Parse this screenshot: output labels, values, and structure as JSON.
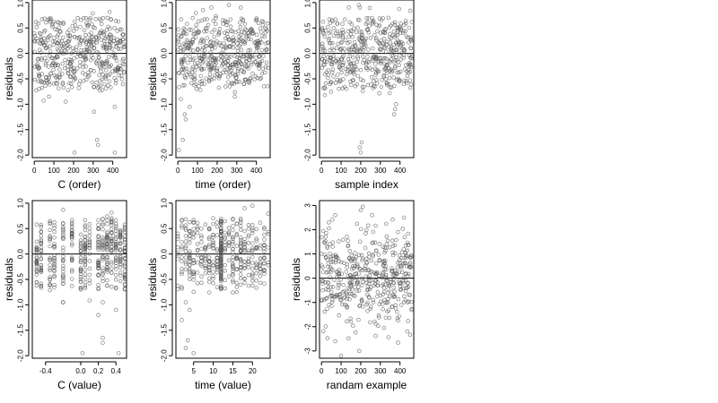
{
  "figure": {
    "background": "#ffffff",
    "point_color": "#555555"
  },
  "chart_data": [
    {
      "type": "scatter",
      "title": "",
      "xlabel": "C (order)",
      "ylabel": "residuals",
      "xlim": [
        -10,
        470
      ],
      "ylim": [
        -2.05,
        1.05
      ],
      "xticks": [
        0,
        100,
        200,
        300,
        400
      ],
      "xtick_labels": [
        "0",
        "100",
        "200",
        "300",
        "400"
      ],
      "yticks": [
        1,
        0.5,
        0,
        -0.5,
        -1,
        -1.5,
        -2
      ],
      "ytick_labels": [
        "1.0",
        "0.5",
        "0.0",
        "-0.5",
        "-1.0",
        "-1.5",
        "-2.0"
      ],
      "hline": 0,
      "n_points": 460,
      "x_range": [
        0,
        460
      ],
      "y_distribution": "mostly -0.8 to 0.8, bimodal around ±0.3",
      "outliers": [
        [
          205,
          -1.95
        ],
        [
          320,
          -1.7
        ],
        [
          325,
          -1.8
        ],
        [
          410,
          -1.95
        ],
        [
          305,
          -1.15
        ],
        [
          410,
          -1.05
        ],
        [
          160,
          -0.95
        ],
        [
          75,
          -0.85
        ]
      ],
      "grid": false,
      "legend": "none"
    },
    {
      "type": "scatter",
      "title": "",
      "xlabel": "time (order)",
      "ylabel": "residuals",
      "xlim": [
        -10,
        470
      ],
      "ylim": [
        -2.05,
        1.05
      ],
      "xticks": [
        0,
        100,
        200,
        300,
        400
      ],
      "xtick_labels": [
        "0",
        "100",
        "200",
        "300",
        "400"
      ],
      "yticks": [
        1,
        0.5,
        0,
        -0.5,
        -1,
        -1.5,
        -2
      ],
      "ytick_labels": [
        "1.0",
        "0.5",
        "0.0",
        "-0.5",
        "-1.0",
        "-1.5",
        "-2.0"
      ],
      "hline": 0,
      "n_points": 460,
      "x_range": [
        0,
        460
      ],
      "y_distribution": "mostly -0.6 to 0.8, large negatives near x=0-50",
      "outliers": [
        [
          5,
          -1.9
        ],
        [
          25,
          -1.7
        ],
        [
          35,
          -1.2
        ],
        [
          40,
          -1.3
        ],
        [
          60,
          -1.05
        ],
        [
          15,
          -0.9
        ],
        [
          260,
          0.95
        ],
        [
          320,
          0.9
        ],
        [
          95,
          -0.7
        ]
      ],
      "grid": false,
      "legend": "none"
    },
    {
      "type": "scatter",
      "title": "",
      "xlabel": "sample index",
      "ylabel": "residuals",
      "xlim": [
        -10,
        470
      ],
      "ylim": [
        -2.05,
        1.05
      ],
      "xticks": [
        0,
        100,
        200,
        300,
        400
      ],
      "xtick_labels": [
        "0",
        "100",
        "200",
        "300",
        "400"
      ],
      "yticks": [
        1,
        0.5,
        0,
        -0.5,
        -1,
        -1.5,
        -2
      ],
      "ytick_labels": [
        "1.0",
        "0.5",
        "0.0",
        "-0.5",
        "-1.0",
        "-1.5",
        "-2.0"
      ],
      "hline": 0,
      "n_points": 460,
      "x_range": [
        0,
        460
      ],
      "y_distribution": "mostly -0.7 to 0.8",
      "outliers": [
        [
          195,
          -1.85
        ],
        [
          200,
          -1.95
        ],
        [
          205,
          -1.75
        ],
        [
          370,
          -1.2
        ],
        [
          375,
          -1.1
        ],
        [
          380,
          -1.0
        ],
        [
          190,
          0.95
        ]
      ],
      "grid": false,
      "legend": "none"
    },
    {
      "type": "scatter",
      "title": "",
      "xlabel": "C (value)",
      "ylabel": "residuals",
      "xlim": [
        -0.55,
        0.52
      ],
      "ylim": [
        -2.05,
        1.05
      ],
      "xticks": [
        -0.4,
        0.0,
        0.2,
        0.4
      ],
      "xtick_labels": [
        "-0.4",
        "0.0",
        "0.2",
        "0.4"
      ],
      "yticks": [
        1,
        0.5,
        0,
        -0.5,
        -1,
        -1.5,
        -2
      ],
      "ytick_labels": [
        "1.0",
        "0.5",
        "0.0",
        "-0.5",
        "-1.0",
        "-1.5",
        "-2.0"
      ],
      "hline": 0,
      "n_points": 460,
      "x_levels": [
        -0.5,
        -0.45,
        -0.35,
        -0.3,
        -0.2,
        -0.1,
        0.0,
        0.05,
        0.1,
        0.2,
        0.25,
        0.3,
        0.35,
        0.4,
        0.45,
        0.5
      ],
      "y_distribution": "points stacked at discrete C levels, mostly -0.8 to 0.8",
      "outliers": [
        [
          0.02,
          -1.95
        ],
        [
          0.25,
          -1.75
        ],
        [
          0.25,
          -1.65
        ],
        [
          0.43,
          -1.95
        ],
        [
          0.2,
          -1.2
        ],
        [
          0.4,
          -1.1
        ],
        [
          -0.2,
          -0.95
        ]
      ],
      "grid": false,
      "legend": "none"
    },
    {
      "type": "scatter",
      "title": "",
      "xlabel": "time (value)",
      "ylabel": "residuals",
      "xlim": [
        0.5,
        24.5
      ],
      "ylim": [
        -2.05,
        1.05
      ],
      "xticks": [
        5,
        10,
        15,
        20
      ],
      "xtick_labels": [
        "5",
        "10",
        "15",
        "20"
      ],
      "yticks": [
        1,
        0.5,
        0,
        -0.5,
        -1,
        -1.5,
        -2
      ],
      "ytick_labels": [
        "1.0",
        "0.5",
        "0.0",
        "-0.5",
        "-1.0",
        "-1.5",
        "-2.0"
      ],
      "hline": 0,
      "n_points": 460,
      "x_range": [
        1,
        24
      ],
      "y_distribution": "mostly -0.6 to 0.8, dense column at x≈12",
      "outliers": [
        [
          3,
          -1.85
        ],
        [
          3.5,
          -1.7
        ],
        [
          5,
          -1.95
        ],
        [
          2,
          -1.3
        ],
        [
          4,
          -1.1
        ],
        [
          3,
          -0.95
        ],
        [
          18,
          0.9
        ],
        [
          20,
          0.95
        ]
      ],
      "grid": false,
      "legend": "none"
    },
    {
      "type": "scatter",
      "title": "",
      "xlabel": "randam example",
      "ylabel": "residuals",
      "xlim": [
        -10,
        470
      ],
      "ylim": [
        -3.3,
        3.2
      ],
      "xticks": [
        0,
        100,
        200,
        300,
        400
      ],
      "xtick_labels": [
        "0",
        "100",
        "200",
        "300",
        "400"
      ],
      "yticks": [
        3,
        2,
        1,
        0,
        -1,
        -2,
        -3
      ],
      "ytick_labels": [
        "3",
        "2",
        "1",
        "0",
        "-1",
        "-2",
        "-3"
      ],
      "hline": 0,
      "n_points": 460,
      "x_range": [
        0,
        460
      ],
      "y_distribution": "approximately standard normal, sd ≈ 1",
      "outliers": [
        [
          100,
          -3.2
        ],
        [
          70,
          -2.6
        ],
        [
          200,
          2.8
        ],
        [
          420,
          2.5
        ],
        [
          70,
          2.6
        ]
      ],
      "grid": false,
      "legend": "none"
    }
  ]
}
